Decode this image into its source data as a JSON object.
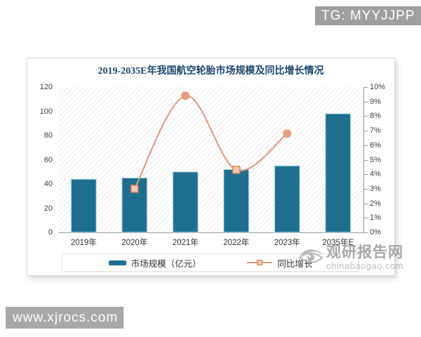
{
  "badges": {
    "top_right": "TG: MYYJJPP",
    "bottom_left": "www.xjrocs.com"
  },
  "watermark": {
    "name": "观研报告网",
    "url": "chinabaogao.com"
  },
  "chart_data": {
    "type": "bar",
    "title": "2019-2035E年我国航空轮胎市场规模及同比增长情况",
    "categories": [
      "2019年",
      "2020年",
      "2021年",
      "2022年",
      "2023年",
      "2035年E"
    ],
    "series": [
      {
        "name": "市场规模（亿元）",
        "type": "bar",
        "axis": "left",
        "values": [
          44,
          45,
          50,
          52,
          55,
          98
        ]
      },
      {
        "name": "同比增长",
        "type": "line",
        "axis": "right",
        "values": [
          null,
          3.0,
          9.4,
          4.3,
          6.8,
          null
        ],
        "marker_shapes": [
          null,
          "square",
          "circle",
          "square",
          "circle",
          null
        ]
      }
    ],
    "left_axis": {
      "min": 0,
      "max": 120,
      "ticks": [
        0,
        20,
        40,
        60,
        80,
        100,
        120
      ]
    },
    "right_axis": {
      "min": 0,
      "max": 10,
      "ticks": [
        "0%",
        "1%",
        "2%",
        "3%",
        "4%",
        "5%",
        "6%",
        "7%",
        "8%",
        "9%",
        "10%"
      ]
    },
    "legend_position": "bottom",
    "grid": false
  },
  "style": {
    "bar_fill": "#1f6e8e",
    "bar_stroke": "#bfe3ef",
    "line_color": "#e2977c",
    "marker_fill": "#f3c7ad",
    "marker_stroke": "#d4825f",
    "marker_solid": "#e89c80",
    "title_color": "#1c4670",
    "axis_color": "#9a9a9a",
    "watermark_color": "#9d9d9d"
  }
}
